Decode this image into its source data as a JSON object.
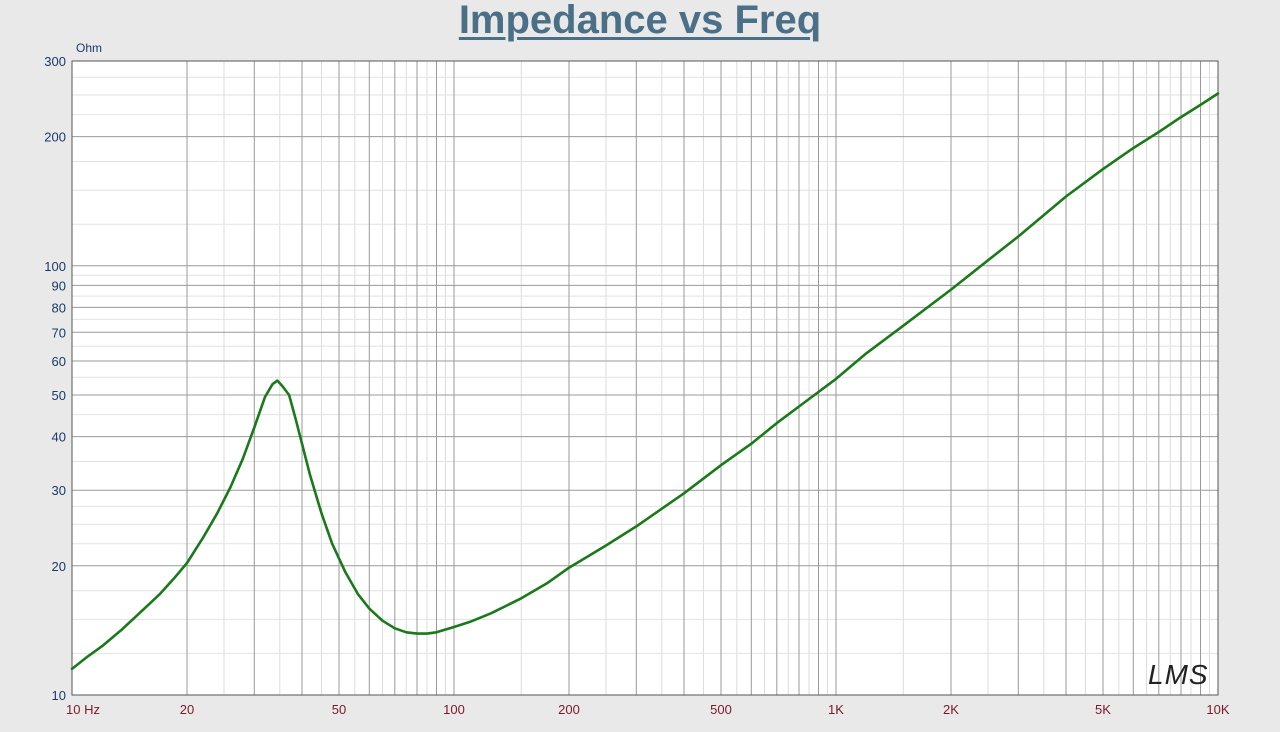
{
  "chart_data": {
    "type": "line",
    "title": "Impedance vs Freq",
    "ylabel": "Ohm",
    "xscale": "log",
    "yscale": "log",
    "xlim": [
      10,
      10000
    ],
    "ylim": [
      10,
      300
    ],
    "grid": true,
    "watermark": "LMS",
    "x_tick_labels": [
      {
        "value": 10,
        "label": "10  Hz"
      },
      {
        "value": 20,
        "label": "20"
      },
      {
        "value": 50,
        "label": "50"
      },
      {
        "value": 100,
        "label": "100"
      },
      {
        "value": 200,
        "label": "200"
      },
      {
        "value": 500,
        "label": "500"
      },
      {
        "value": 1000,
        "label": "1K"
      },
      {
        "value": 2000,
        "label": "2K"
      },
      {
        "value": 5000,
        "label": "5K"
      },
      {
        "value": 10000,
        "label": "10K"
      }
    ],
    "y_tick_labels": [
      {
        "value": 10,
        "label": "10"
      },
      {
        "value": 20,
        "label": "20"
      },
      {
        "value": 30,
        "label": "30"
      },
      {
        "value": 40,
        "label": "40"
      },
      {
        "value": 50,
        "label": "50"
      },
      {
        "value": 60,
        "label": "60"
      },
      {
        "value": 70,
        "label": "70"
      },
      {
        "value": 80,
        "label": "80"
      },
      {
        "value": 90,
        "label": "90"
      },
      {
        "value": 100,
        "label": "100"
      },
      {
        "value": 200,
        "label": "200"
      },
      {
        "value": 300,
        "label": "300"
      }
    ],
    "series": [
      {
        "color": "#1a7a1a",
        "points": [
          [
            10,
            11.5
          ],
          [
            11,
            12.3
          ],
          [
            12,
            13.0
          ],
          [
            13.5,
            14.2
          ],
          [
            15,
            15.5
          ],
          [
            17,
            17.2
          ],
          [
            18.5,
            18.7
          ],
          [
            20,
            20.3
          ],
          [
            22,
            23.2
          ],
          [
            24,
            26.5
          ],
          [
            26,
            30.5
          ],
          [
            28,
            35.5
          ],
          [
            30,
            42
          ],
          [
            32,
            49.5
          ],
          [
            33.5,
            53
          ],
          [
            34.5,
            54
          ],
          [
            35.5,
            52.5
          ],
          [
            37,
            50
          ],
          [
            38.5,
            44
          ],
          [
            40,
            38.5
          ],
          [
            42,
            32.5
          ],
          [
            45,
            26.5
          ],
          [
            48,
            22.5
          ],
          [
            52,
            19.3
          ],
          [
            56,
            17.2
          ],
          [
            60,
            15.9
          ],
          [
            65,
            14.9
          ],
          [
            70,
            14.3
          ],
          [
            75,
            14.0
          ],
          [
            80,
            13.9
          ],
          [
            85,
            13.9
          ],
          [
            90,
            14.0
          ],
          [
            100,
            14.4
          ],
          [
            110,
            14.8
          ],
          [
            125,
            15.5
          ],
          [
            150,
            16.8
          ],
          [
            175,
            18.2
          ],
          [
            200,
            19.8
          ],
          [
            250,
            22.3
          ],
          [
            300,
            24.7
          ],
          [
            400,
            29.5
          ],
          [
            500,
            34.3
          ],
          [
            600,
            38.5
          ],
          [
            700,
            43
          ],
          [
            800,
            47
          ],
          [
            1000,
            54.5
          ],
          [
            1200,
            62.5
          ],
          [
            1500,
            72.5
          ],
          [
            2000,
            88
          ],
          [
            2500,
            103
          ],
          [
            3000,
            117
          ],
          [
            4000,
            145
          ],
          [
            5000,
            168
          ],
          [
            6000,
            188
          ],
          [
            7000,
            205
          ],
          [
            8000,
            222
          ],
          [
            9000,
            237
          ],
          [
            10000,
            252
          ]
        ]
      }
    ]
  }
}
